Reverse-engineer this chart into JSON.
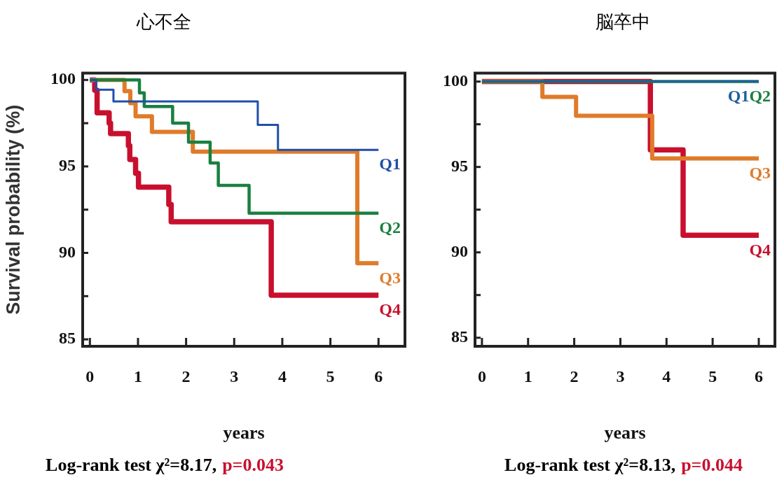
{
  "chart_data": [
    {
      "type": "step",
      "title": "心不全",
      "xlabel": "years",
      "ylabel": "Survival probability (%)",
      "xlim": [
        -0.15,
        6.55
      ],
      "xticks": [
        0,
        1,
        2,
        3,
        4,
        5,
        6
      ],
      "ylim": [
        84.6,
        100.4
      ],
      "yticks": [
        85,
        {
          "value": 87.5,
          "label": null
        },
        90,
        {
          "value": 92.5,
          "label": null
        },
        95,
        {
          "value": 97.5,
          "label": null
        },
        100
      ],
      "grid": false,
      "legend": false,
      "line_style": "solid",
      "marker": "none",
      "annotations": [
        "Log-rank test χ²=8.17,",
        "p=0.043"
      ],
      "series": [
        {
          "name": "Q1",
          "color": "#1f4fa8",
          "x": [
            0,
            0.13,
            0.49,
            3.49,
            3.91,
            6
          ],
          "values": [
            100,
            99.44,
            98.76,
            97.4,
            95.96,
            95.96
          ]
        },
        {
          "name": "Q2",
          "color": "#1a8040",
          "x": [
            0,
            1.03,
            1.13,
            1.72,
            2.05,
            2.5,
            2.67,
            3.31,
            6
          ],
          "values": [
            100,
            99.25,
            98.46,
            97.5,
            96.4,
            95.2,
            93.9,
            92.3,
            92.3
          ]
        },
        {
          "name": "Q3",
          "color": "#e07b2a",
          "x": [
            0,
            0.72,
            0.84,
            0.95,
            1.29,
            2.14,
            5.56,
            6
          ],
          "values": [
            100,
            99.35,
            98.66,
            97.9,
            97.0,
            95.86,
            89.4,
            89.4
          ]
        },
        {
          "name": "Q4",
          "color": "#c8102e",
          "x": [
            0,
            0.1,
            0.15,
            0.4,
            0.43,
            0.8,
            0.83,
            0.95,
            1.01,
            1.64,
            1.69,
            3.77,
            6
          ],
          "values": [
            100,
            99.4,
            98.1,
            97.5,
            96.9,
            96.2,
            95.4,
            94.6,
            93.8,
            92.8,
            91.8,
            87.55,
            87.55
          ]
        }
      ]
    },
    {
      "type": "step",
      "title": "脳卒中",
      "xlabel": "years",
      "xlim": [
        -0.15,
        6.35
      ],
      "xticks": [
        0,
        1,
        2,
        3,
        4,
        5,
        6
      ],
      "ylim": [
        84.5,
        100.5
      ],
      "yticks": [
        85,
        {
          "value": 87.5,
          "label": null
        },
        90,
        {
          "value": 92.5,
          "label": null
        },
        95,
        {
          "value": 97.5,
          "label": null
        },
        100
      ],
      "grid": false,
      "legend": false,
      "line_style": "solid",
      "marker": "none",
      "annotations": [
        "Log-rank test χ²=8.13,",
        "p=0.044"
      ],
      "series": [
        {
          "name": "Q1",
          "color": "#1f5fa0",
          "x": [
            0,
            6
          ],
          "values": [
            100,
            100
          ]
        },
        {
          "name": "Q2",
          "color": "#1a8040",
          "x": [
            0,
            6
          ],
          "values": [
            100,
            100
          ]
        },
        {
          "name": "Q3",
          "color": "#e07b2a",
          "x": [
            0,
            1.31,
            2.04,
            3.69,
            6
          ],
          "values": [
            100,
            99.1,
            98.0,
            95.5,
            95.5
          ]
        },
        {
          "name": "Q4",
          "color": "#c8102e",
          "x": [
            0,
            3.65,
            4.36,
            6
          ],
          "values": [
            100,
            96.0,
            91.0,
            91.0
          ]
        }
      ]
    }
  ]
}
